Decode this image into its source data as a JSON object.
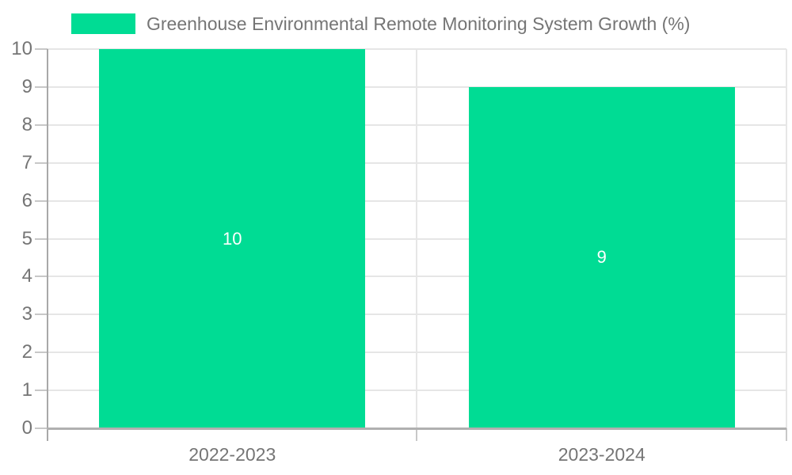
{
  "chart_data": {
    "type": "bar",
    "title": "Greenhouse Environmental Remote Monitoring System Growth (%)",
    "categories": [
      "2022-2023",
      "2023-2024"
    ],
    "series": [
      {
        "name": "Greenhouse Environmental Remote Monitoring System Growth (%)",
        "values": [
          10,
          9
        ]
      }
    ],
    "bar_value_labels": [
      "10",
      "9"
    ],
    "ylim": [
      0,
      10
    ],
    "ytick_labels": [
      "0",
      "1",
      "2",
      "3",
      "4",
      "5",
      "6",
      "7",
      "8",
      "9",
      "10"
    ],
    "xlabel": "",
    "ylabel": "",
    "grid": true,
    "legend_position": "top",
    "colors": {
      "bar": "#00DC94",
      "bar_label_text": "#ffffff",
      "axis_text": "#757575",
      "legend_text": "#757575",
      "gridline": "#e6e6e6",
      "tick": "#c8c8c8",
      "y_axis_line": "#a8a8a8",
      "x_axis_line": "#b0b0b0",
      "background": "#ffffff"
    }
  }
}
